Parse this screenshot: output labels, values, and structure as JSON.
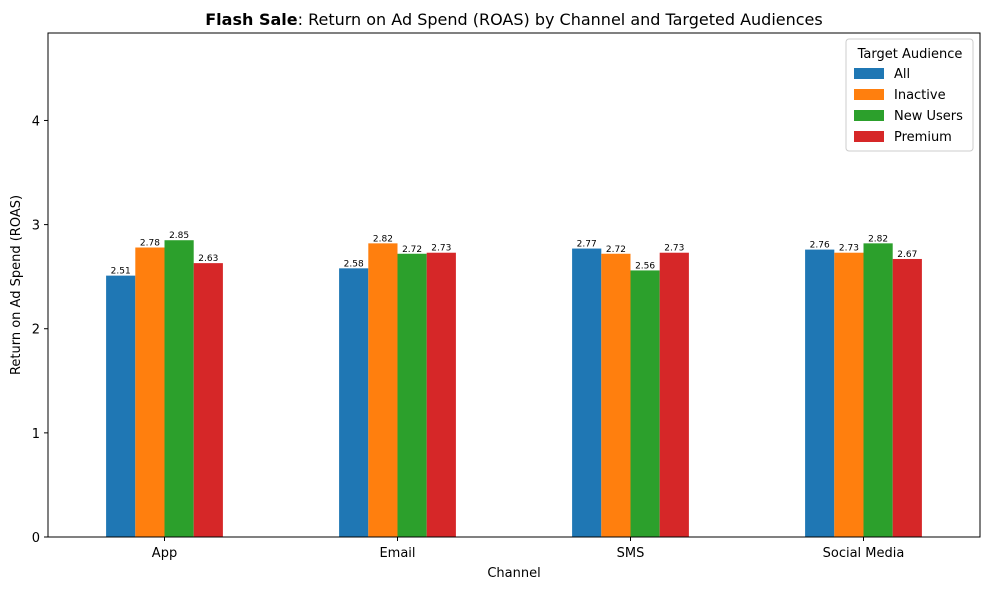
{
  "chart_data": {
    "type": "bar",
    "title_bold": "Flash Sale",
    "title_rest": ": Return on Ad Spend (ROAS) by Channel and Targeted Audiences",
    "xlabel": "Channel",
    "ylabel": "Return on Ad Spend (ROAS)",
    "categories": [
      "App",
      "Email",
      "SMS",
      "Social Media"
    ],
    "ylim": [
      0,
      4.84
    ],
    "yticks": [
      0,
      1,
      2,
      3,
      4
    ],
    "grid": false,
    "legend": {
      "title": "Target Audience",
      "placement": "top-right"
    },
    "series": [
      {
        "name": "All",
        "color": "#1f77b4",
        "values": [
          2.51,
          2.58,
          2.77,
          2.76
        ]
      },
      {
        "name": "Inactive",
        "color": "#ff7f0e",
        "values": [
          2.78,
          2.82,
          2.72,
          2.73
        ]
      },
      {
        "name": "New Users",
        "color": "#2ca02c",
        "values": [
          2.85,
          2.72,
          2.56,
          2.82
        ]
      },
      {
        "name": "Premium",
        "color": "#d62728",
        "values": [
          2.63,
          2.73,
          2.73,
          2.67
        ]
      }
    ]
  }
}
